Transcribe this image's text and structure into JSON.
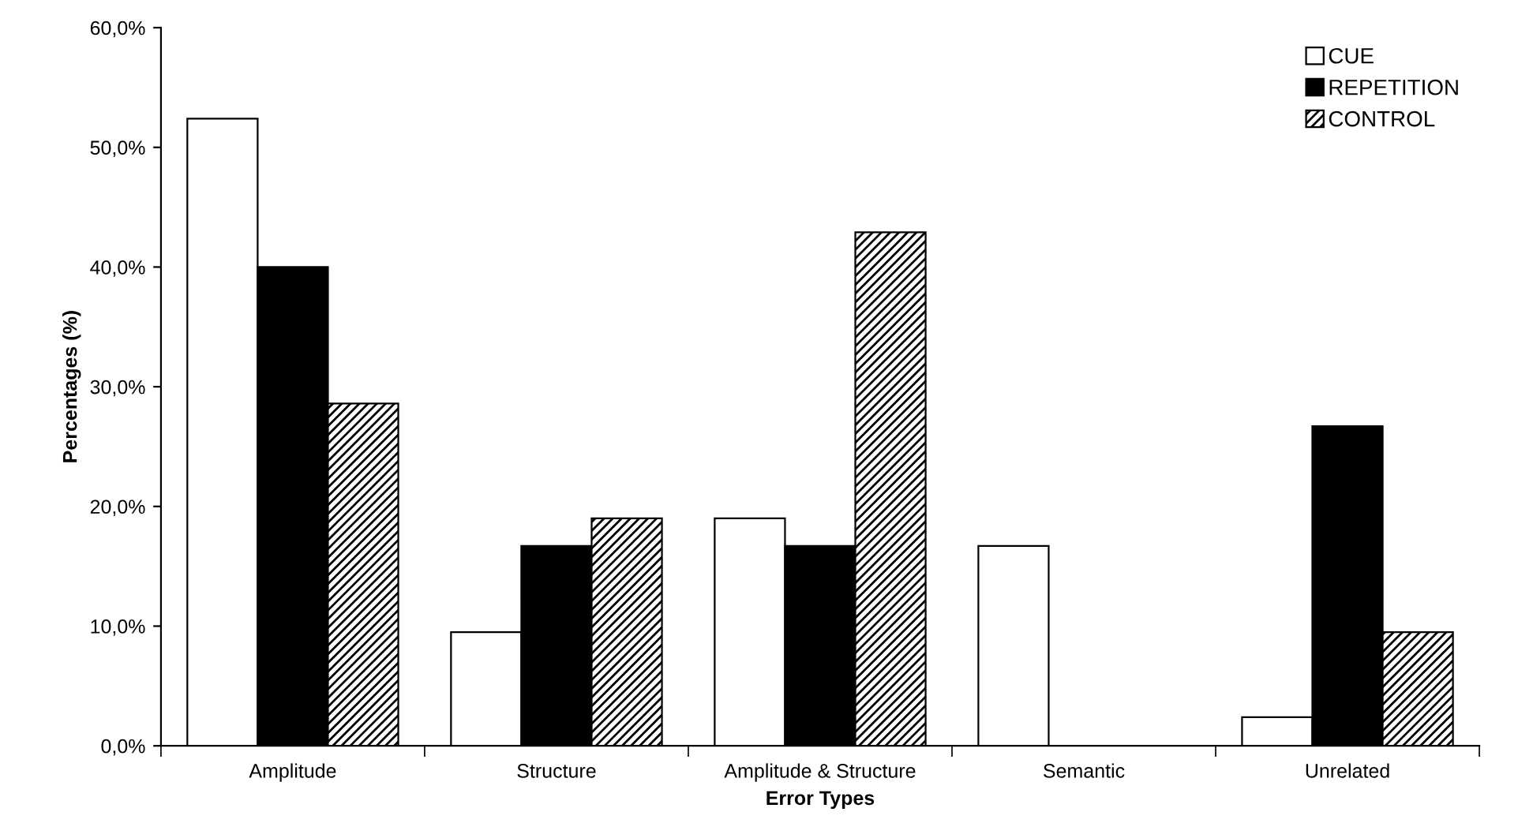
{
  "chart_data": {
    "type": "bar",
    "xlabel": "Error Types",
    "ylabel": "Percentages (%)",
    "categories": [
      "Amplitude",
      "Structure",
      "Amplitude & Structure",
      "Semantic",
      "Unrelated"
    ],
    "series": [
      {
        "name": "CUE",
        "color": "#ffffff",
        "values": [
          52.4,
          9.5,
          19.0,
          16.7,
          2.4
        ]
      },
      {
        "name": "REPETITION",
        "color": "#000000",
        "values": [
          40.0,
          16.7,
          16.7,
          0,
          26.7
        ]
      },
      {
        "name": "CONTROL",
        "color": "#000000",
        "values": [
          28.6,
          19.0,
          42.9,
          0,
          9.5
        ]
      }
    ],
    "ylim": [
      0,
      60
    ],
    "yticks": [
      {
        "value": 0,
        "label": "0,0%"
      },
      {
        "value": 10,
        "label": "10,0%"
      },
      {
        "value": 20,
        "label": "20,0%"
      },
      {
        "value": 30,
        "label": "30,0%"
      },
      {
        "value": 40,
        "label": "40,0%"
      },
      {
        "value": 50,
        "label": "50,0%"
      },
      {
        "value": 60,
        "label": "60,0%"
      }
    ],
    "grid": false,
    "legend": "top right"
  }
}
